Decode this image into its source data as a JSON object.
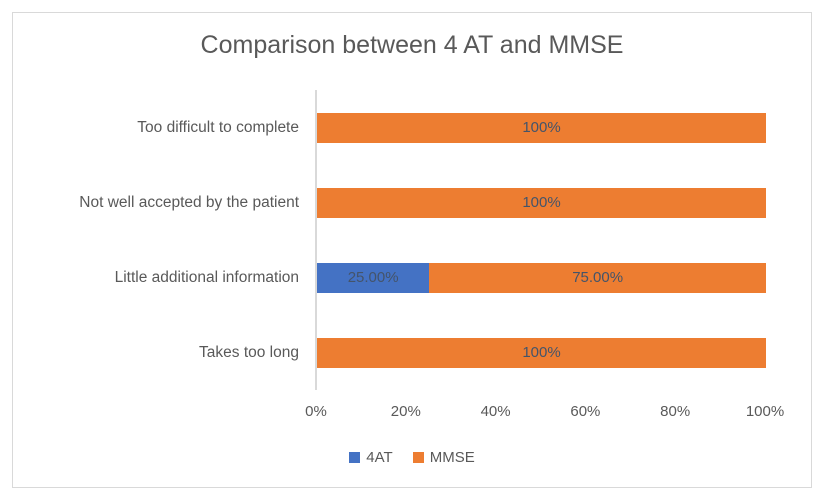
{
  "window": {
    "background": "#ffffff",
    "border_color": "#d9d9d9"
  },
  "chart_data": {
    "type": "bar",
    "orientation": "horizontal",
    "stacked": true,
    "title": "Comparison between 4 AT and MMSE",
    "categories": [
      "Too difficult to complete",
      "Not well accepted by the patient",
      "Little additional information",
      "Takes too long"
    ],
    "series": [
      {
        "name": "4AT",
        "color": "#4472c4",
        "values": [
          0,
          0,
          25,
          0
        ],
        "data_labels": [
          "",
          "",
          "25.00%",
          ""
        ]
      },
      {
        "name": "MMSE",
        "color": "#ed7d31",
        "values": [
          100,
          100,
          75,
          100
        ],
        "data_labels": [
          "100%",
          "100%",
          "75.00%",
          "100%"
        ]
      }
    ],
    "x_ticks": [
      "0%",
      "20%",
      "40%",
      "60%",
      "80%",
      "100%"
    ],
    "xlim": [
      0,
      100
    ],
    "grid": false,
    "legend_position": "bottom",
    "legend": [
      {
        "label": "4AT",
        "color": "#4472c4"
      },
      {
        "label": "MMSE",
        "color": "#ed7d31"
      }
    ],
    "colors": {
      "title_text": "#595959",
      "axis_text": "#595959",
      "data_label_text": "#44546a",
      "axis_line": "#d9d9d9"
    }
  }
}
